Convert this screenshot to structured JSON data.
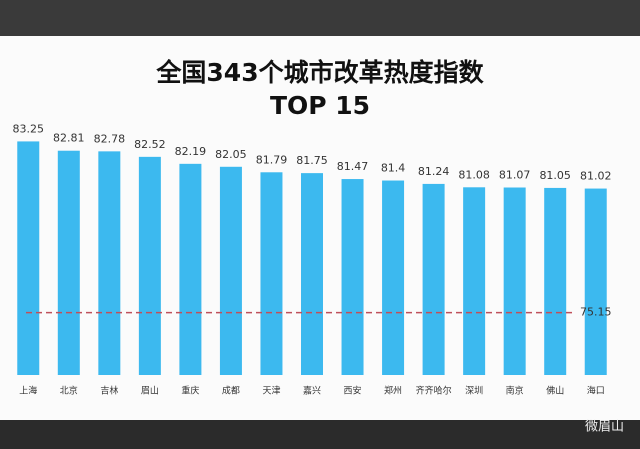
{
  "chart_data": {
    "type": "bar",
    "title": "全国343个城市改革热度指数",
    "subtitle": "TOP 15",
    "categories": [
      "上海",
      "北京",
      "吉林",
      "眉山",
      "重庆",
      "成都",
      "天津",
      "嘉兴",
      "西安",
      "郑州",
      "齐齐哈尔",
      "深圳",
      "南京",
      "佛山",
      "海口"
    ],
    "values": [
      83.25,
      82.81,
      82.78,
      82.52,
      82.19,
      82.05,
      81.79,
      81.75,
      81.47,
      81.4,
      81.24,
      81.08,
      81.07,
      81.05,
      81.02
    ],
    "color": "#3cb9ef",
    "ylim": [
      72.2,
      84.5
    ],
    "reference_line": 75.15,
    "reference_color": "#c0505a"
  },
  "watermark": "微眉山"
}
